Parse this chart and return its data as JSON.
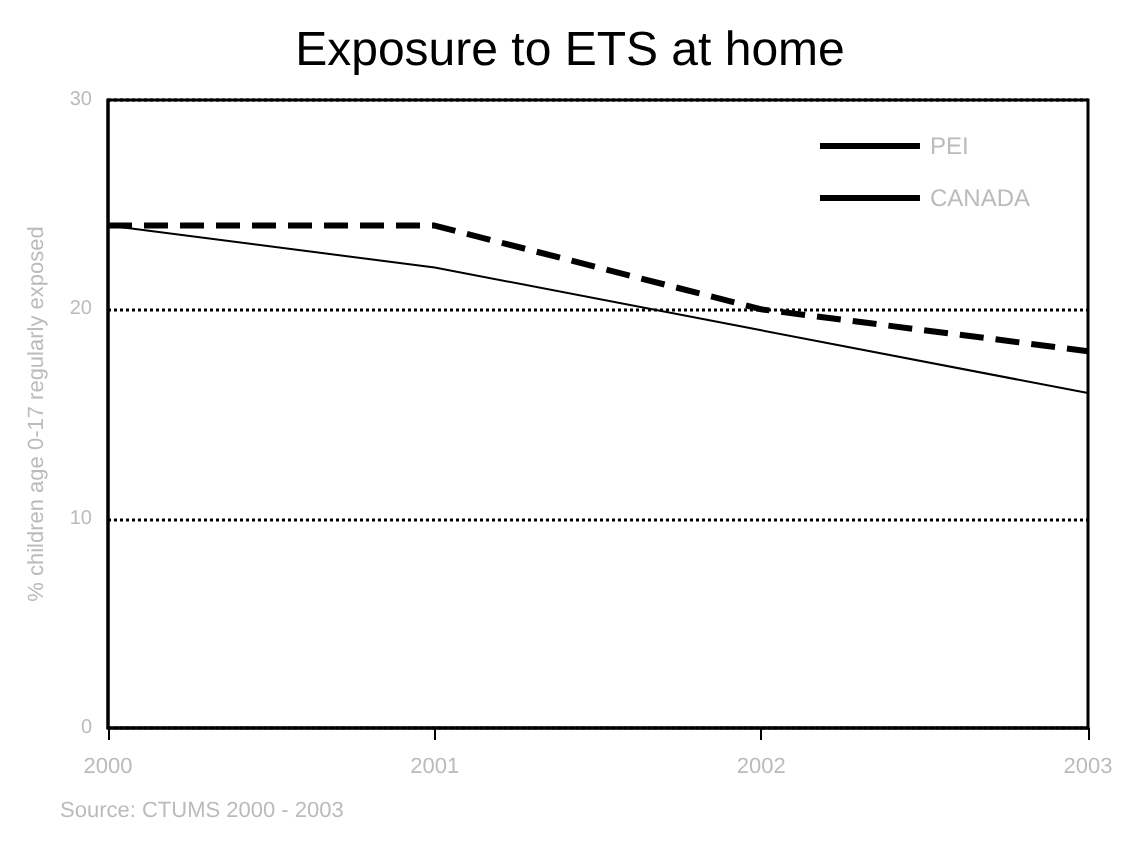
{
  "chart_data": {
    "type": "line",
    "title": "Exposure to ETS at home",
    "ylabel": "% children age 0-17 regularly exposed",
    "annotations": [
      "Source: CTUMS 2000 - 2003"
    ],
    "x": [
      2000,
      2001,
      2002,
      2003
    ],
    "xlim": [
      2000,
      2003
    ],
    "xticks": [
      2000,
      2001,
      2002,
      2003
    ],
    "ylim": [
      0,
      30
    ],
    "yticks": [
      0,
      10,
      20,
      30
    ],
    "series": [
      {
        "name": "PEI",
        "color": "#000000",
        "line_style": "dashed",
        "values": [
          24,
          24,
          20,
          18
        ]
      },
      {
        "name": "CANADA",
        "color": "#000000",
        "line_style": "solid",
        "values": [
          24,
          22,
          19,
          16
        ]
      }
    ],
    "grid": "y",
    "legend": "top right",
    "marker": "none"
  }
}
